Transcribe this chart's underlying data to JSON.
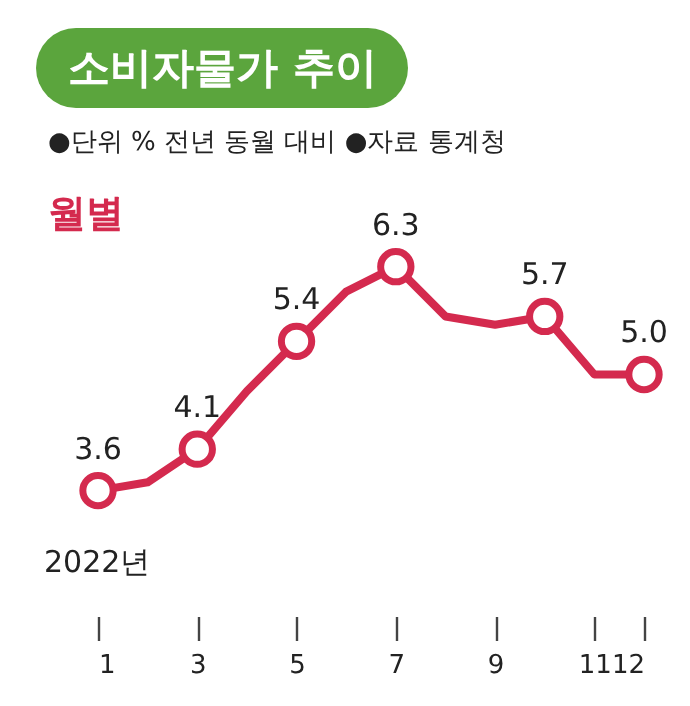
{
  "chart_data": {
    "type": "line",
    "title": "소비자물가 추이",
    "subtitle": "●단위 % 전년 동월 대비 ●자료 통계청",
    "annotations": [
      "월별",
      "2022년"
    ],
    "x": [
      1,
      2,
      3,
      4,
      5,
      6,
      7,
      8,
      9,
      10,
      11,
      12
    ],
    "xlim": [
      1,
      12
    ],
    "xticks": [
      1,
      3,
      5,
      7,
      9,
      11,
      12
    ],
    "tick_labels": "x",
    "marker": "circle",
    "grid": false,
    "series": [
      {
        "color": "#d42a4e",
        "values": [
          3.6,
          3.7,
          4.1,
          4.8,
          5.4,
          6.0,
          6.3,
          5.7,
          5.6,
          5.7,
          5.0,
          5.0
        ],
        "value_labels": [
          "3.6",
          null,
          "4.1",
          null,
          "5.4",
          null,
          "6.3",
          null,
          null,
          "5.7",
          null,
          "5.0"
        ]
      }
    ]
  }
}
